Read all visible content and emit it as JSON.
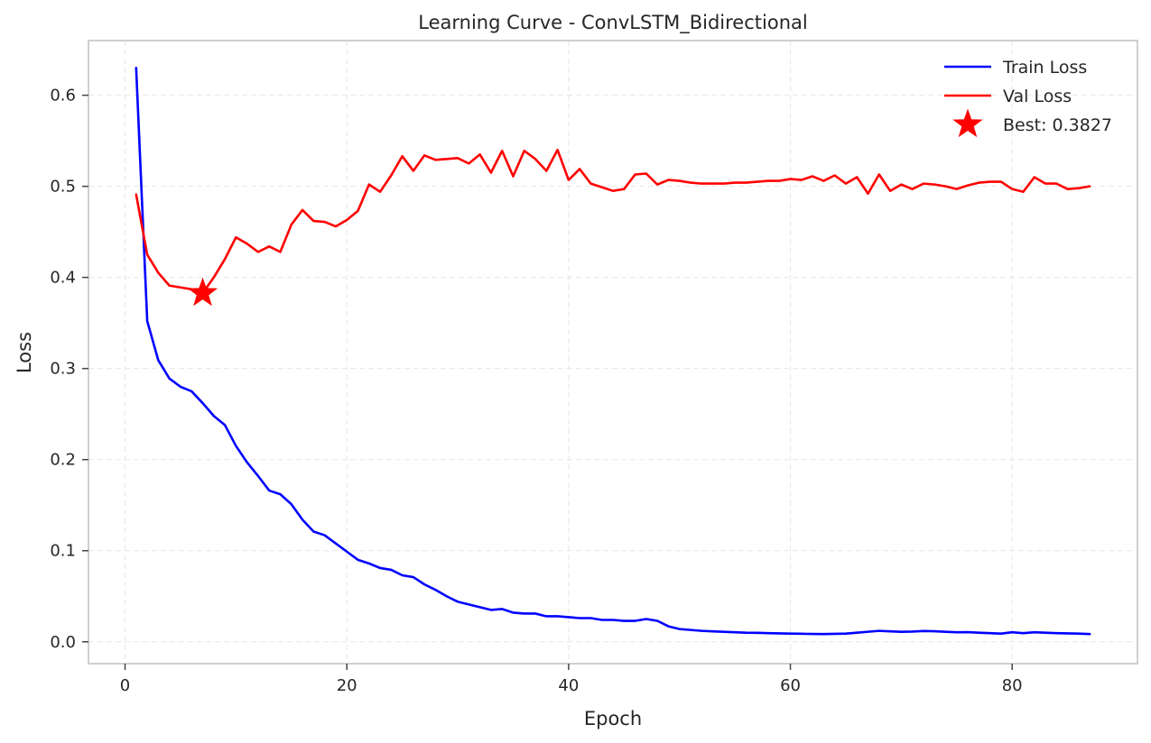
{
  "chart_data": {
    "type": "line",
    "title": "Learning Curve - ConvLSTM_Bidirectional",
    "xlabel": "Epoch",
    "ylabel": "Loss",
    "xlim": [
      -3.3,
      91.3
    ],
    "ylim": [
      -0.024,
      0.66
    ],
    "xticks": [
      0,
      20,
      40,
      60,
      80
    ],
    "xtick_labels": [
      "0",
      "20",
      "40",
      "60",
      "80"
    ],
    "yticks": [
      0.0,
      0.1,
      0.2,
      0.3,
      0.4,
      0.5,
      0.6
    ],
    "ytick_labels": [
      "0.0",
      "0.1",
      "0.2",
      "0.3",
      "0.4",
      "0.5",
      "0.6"
    ],
    "grid": true,
    "legend_position": "top-right",
    "x": [
      1,
      2,
      3,
      4,
      5,
      6,
      7,
      8,
      9,
      10,
      11,
      12,
      13,
      14,
      15,
      16,
      17,
      18,
      19,
      20,
      21,
      22,
      23,
      24,
      25,
      26,
      27,
      28,
      29,
      30,
      31,
      32,
      33,
      34,
      35,
      36,
      37,
      38,
      39,
      40,
      41,
      42,
      43,
      44,
      45,
      46,
      47,
      48,
      49,
      50,
      51,
      52,
      53,
      54,
      55,
      56,
      57,
      58,
      59,
      60,
      61,
      62,
      63,
      64,
      65,
      66,
      67,
      68,
      69,
      70,
      71,
      72,
      73,
      74,
      75,
      76,
      77,
      78,
      79,
      80,
      81,
      82,
      83,
      84,
      85,
      86,
      87
    ],
    "series": [
      {
        "name": "Train Loss",
        "color": "#0000ff",
        "values": [
          0.63,
          0.352,
          0.309,
          0.289,
          0.28,
          0.275,
          0.262,
          0.248,
          0.238,
          0.215,
          0.197,
          0.182,
          0.166,
          0.162,
          0.151,
          0.134,
          0.121,
          0.117,
          0.108,
          0.099,
          0.09,
          0.086,
          0.081,
          0.079,
          0.073,
          0.071,
          0.063,
          0.057,
          0.05,
          0.044,
          0.041,
          0.038,
          0.035,
          0.036,
          0.032,
          0.031,
          0.031,
          0.028,
          0.028,
          0.027,
          0.026,
          0.026,
          0.024,
          0.024,
          0.023,
          0.023,
          0.025,
          0.023,
          0.017,
          0.014,
          0.013,
          0.012,
          0.0115,
          0.011,
          0.0105,
          0.01,
          0.0098,
          0.0095,
          0.0092,
          0.009,
          0.0088,
          0.0086,
          0.0085,
          0.0087,
          0.009,
          0.01,
          0.011,
          0.012,
          0.0115,
          0.011,
          0.0112,
          0.0118,
          0.0116,
          0.011,
          0.0105,
          0.0106,
          0.01,
          0.0095,
          0.009,
          0.0105,
          0.0095,
          0.0105,
          0.01,
          0.0095,
          0.0092,
          0.009,
          0.0085
        ]
      },
      {
        "name": "Val Loss",
        "color": "#ff0000",
        "values": [
          0.491,
          0.425,
          0.405,
          0.391,
          0.389,
          0.387,
          0.3827,
          0.4,
          0.42,
          0.444,
          0.437,
          0.428,
          0.434,
          0.428,
          0.458,
          0.474,
          0.462,
          0.461,
          0.456,
          0.463,
          0.473,
          0.502,
          0.494,
          0.512,
          0.533,
          0.517,
          0.534,
          0.529,
          0.53,
          0.531,
          0.525,
          0.535,
          0.515,
          0.539,
          0.511,
          0.539,
          0.53,
          0.517,
          0.54,
          0.507,
          0.519,
          0.503,
          0.499,
          0.495,
          0.497,
          0.513,
          0.514,
          0.502,
          0.507,
          0.506,
          0.504,
          0.503,
          0.503,
          0.503,
          0.504,
          0.504,
          0.505,
          0.506,
          0.506,
          0.508,
          0.507,
          0.511,
          0.506,
          0.512,
          0.503,
          0.51,
          0.492,
          0.513,
          0.495,
          0.502,
          0.497,
          0.503,
          0.502,
          0.5,
          0.497,
          0.501,
          0.504,
          0.505,
          0.505,
          0.497,
          0.494,
          0.51,
          0.503,
          0.503,
          0.497,
          0.498,
          0.5
        ]
      }
    ],
    "best_marker": {
      "label": "Best: 0.3827",
      "epoch": 7,
      "value": 0.3827,
      "color": "#ff0000",
      "shape": "star"
    }
  }
}
